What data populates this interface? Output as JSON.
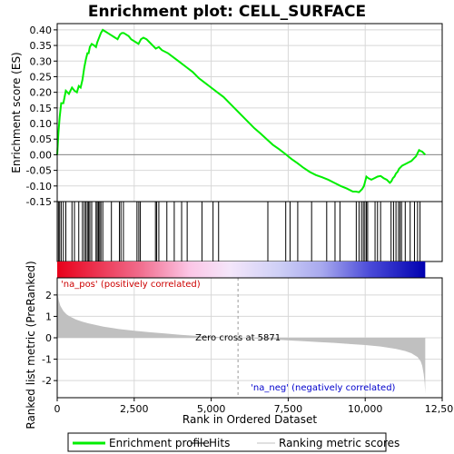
{
  "chart_data": {
    "type": "line",
    "title": "Enrichment plot: CELL_SURFACE",
    "es_panel": {
      "ylabel": "Enrichment score (ES)",
      "ylim": [
        -0.15,
        0.42
      ],
      "yticks": [
        "-0.15",
        "-0.10",
        "-0.05",
        "0.00",
        "0.05",
        "0.10",
        "0.15",
        "0.20",
        "0.25",
        "0.30",
        "0.35",
        "0.40"
      ],
      "ytick_values": [
        -0.15,
        -0.1,
        -0.05,
        0.0,
        0.05,
        0.1,
        0.15,
        0.2,
        0.25,
        0.3,
        0.35,
        0.4
      ],
      "series": [
        {
          "name": "Enrichment profile",
          "color": "#00ee00",
          "x": [
            0,
            40,
            80,
            130,
            200,
            280,
            380,
            480,
            560,
            640,
            700,
            760,
            820,
            880,
            930,
            980,
            1020,
            1060,
            1120,
            1200,
            1260,
            1300,
            1340,
            1380,
            1420,
            1480,
            1560,
            1640,
            1720,
            1800,
            1880,
            1960,
            2040,
            2100,
            2160,
            2240,
            2320,
            2400,
            2480,
            2560,
            2640,
            2720,
            2800,
            2900,
            3000,
            3100,
            3200,
            3300,
            3400,
            3600,
            3800,
            4000,
            4200,
            4400,
            4600,
            4800,
            5000,
            5200,
            5400,
            5600,
            5800,
            6000,
            6200,
            6400,
            6600,
            6800,
            7000,
            7200,
            7400,
            7600,
            7800,
            8000,
            8200,
            8400,
            8600,
            8800,
            9000,
            9200,
            9400,
            9600,
            9700,
            9800,
            9900,
            9960,
            10000,
            10040,
            10100,
            10200,
            10300,
            10400,
            10500,
            10600,
            10700,
            10800,
            10850,
            10900,
            10950,
            11000,
            11050,
            11100,
            11150,
            11200,
            11300,
            11400,
            11500,
            11600,
            11650,
            11700,
            11750,
            11800,
            11850,
            11900,
            11950
          ],
          "y": [
            0.0,
            0.07,
            0.12,
            0.165,
            0.165,
            0.205,
            0.195,
            0.215,
            0.205,
            0.2,
            0.22,
            0.215,
            0.24,
            0.28,
            0.305,
            0.325,
            0.325,
            0.345,
            0.355,
            0.35,
            0.345,
            0.36,
            0.37,
            0.38,
            0.39,
            0.4,
            0.395,
            0.39,
            0.385,
            0.38,
            0.375,
            0.37,
            0.385,
            0.39,
            0.39,
            0.385,
            0.38,
            0.37,
            0.365,
            0.36,
            0.355,
            0.37,
            0.375,
            0.37,
            0.36,
            0.35,
            0.34,
            0.345,
            0.335,
            0.325,
            0.31,
            0.295,
            0.28,
            0.265,
            0.245,
            0.23,
            0.215,
            0.2,
            0.185,
            0.165,
            0.145,
            0.125,
            0.105,
            0.085,
            0.068,
            0.05,
            0.032,
            0.018,
            0.003,
            -0.013,
            -0.027,
            -0.042,
            -0.055,
            -0.065,
            -0.072,
            -0.08,
            -0.09,
            -0.1,
            -0.108,
            -0.118,
            -0.118,
            -0.12,
            -0.11,
            -0.1,
            -0.085,
            -0.07,
            -0.075,
            -0.08,
            -0.075,
            -0.07,
            -0.068,
            -0.075,
            -0.08,
            -0.09,
            -0.085,
            -0.075,
            -0.07,
            -0.06,
            -0.055,
            -0.045,
            -0.04,
            -0.035,
            -0.03,
            -0.025,
            -0.02,
            -0.01,
            -0.005,
            0.005,
            0.015,
            0.012,
            0.01,
            0.005,
            0.0
          ]
        }
      ]
    },
    "hits_panel": {
      "hit_positions": [
        40,
        80,
        130,
        200,
        280,
        480,
        560,
        700,
        820,
        880,
        930,
        980,
        1020,
        1060,
        1120,
        1260,
        1300,
        1340,
        1380,
        1420,
        1480,
        1760,
        2020,
        2070,
        2150,
        2590,
        2650,
        2700,
        3190,
        3230,
        3300,
        3560,
        3800,
        4040,
        4220,
        4700,
        5060,
        5240,
        6840,
        7420,
        7560,
        7810,
        8260,
        8750,
        9020,
        9180,
        9710,
        9800,
        9880,
        9940,
        9990,
        10040,
        10080,
        10320,
        10400,
        10500,
        10840,
        10920,
        11000,
        11080,
        11130,
        11180,
        11300,
        11460,
        11600,
        11700,
        11780
      ]
    },
    "metric_panel": {
      "ylabel": "Ranked list metric (PreRanked)",
      "ylim": [
        -2.8,
        2.8
      ],
      "yticks": [
        "-2",
        "-1",
        "0",
        "1",
        "2"
      ],
      "ytick_values": [
        -2,
        -1,
        0,
        1,
        2
      ],
      "color": "#c0c0c0",
      "x": [
        0,
        20,
        50,
        100,
        200,
        300,
        400,
        600,
        800,
        1000,
        1500,
        2000,
        2500,
        3000,
        3500,
        4000,
        4500,
        5000,
        5500,
        5871,
        6500,
        7000,
        7500,
        8000,
        8500,
        9000,
        9500,
        10000,
        10500,
        11000,
        11300,
        11500,
        11700,
        11800,
        11850,
        11900,
        11930,
        11950
      ],
      "values": [
        2.5,
        2.0,
        1.75,
        1.5,
        1.25,
        1.1,
        1.0,
        0.86,
        0.76,
        0.68,
        0.52,
        0.41,
        0.33,
        0.26,
        0.2,
        0.14,
        0.09,
        0.05,
        0.02,
        0.0,
        -0.04,
        -0.08,
        -0.12,
        -0.16,
        -0.2,
        -0.24,
        -0.29,
        -0.34,
        -0.41,
        -0.52,
        -0.62,
        -0.72,
        -0.9,
        -1.1,
        -1.3,
        -1.7,
        -2.1,
        -2.6
      ],
      "zero_cross_label": "Zero cross at 5871",
      "zero_cross_x": 5871,
      "pos_label": "'na_pos' (positively correlated)",
      "neg_label": "'na_neg' (negatively correlated)"
    },
    "xlabel": "Rank in Ordered Dataset",
    "xlim": [
      0,
      12500
    ],
    "xticks": [
      "0",
      "2,500",
      "5,000",
      "7,500",
      "10,000",
      "12,500"
    ],
    "xtick_values": [
      0,
      2500,
      5000,
      7500,
      10000,
      12500
    ],
    "colors": {
      "profile": "#00ee00",
      "pos_label": "#cc0000",
      "neg_label": "#0000cc",
      "metric_fill": "#c0c0c0",
      "grid": "#d8d8d8"
    },
    "legend": {
      "placement": "bottom",
      "entries": [
        {
          "label": "Enrichment profile",
          "color": "#00ee00"
        },
        {
          "label": "Hits",
          "color": "#000000"
        },
        {
          "label": "Ranking metric scores",
          "color": "#c0c0c0"
        }
      ]
    }
  }
}
